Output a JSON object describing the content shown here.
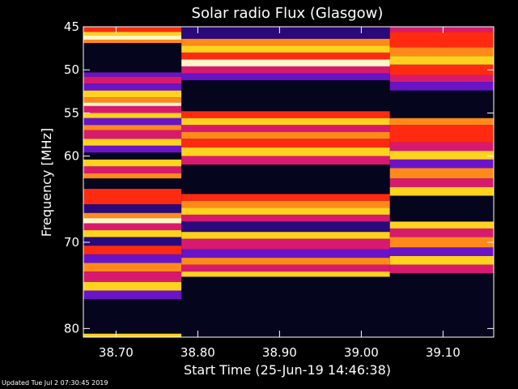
{
  "chart_data": {
    "type": "heatmap",
    "title": "Solar radio Flux (Glasgow)",
    "xlabel": "Start Time (25-Jun-19 14:46:38)",
    "ylabel": "Frequency [MHz]",
    "xlim": [
      38.66,
      39.162
    ],
    "ylim": [
      45,
      81
    ],
    "y_inverted": true,
    "x_ticks": [
      "38.70",
      "38.80",
      "38.90",
      "39.00",
      "39.10"
    ],
    "x_tick_values": [
      38.7,
      38.8,
      38.9,
      39.0,
      39.1
    ],
    "y_ticks": [
      "45",
      "50",
      "55",
      "60",
      "70",
      "80"
    ],
    "y_tick_values": [
      45,
      50,
      55,
      60,
      70,
      80
    ],
    "palette": [
      "#05051e",
      "#2a0a7a",
      "#6a14c8",
      "#d81a6e",
      "#ff2a10",
      "#ff8a1a",
      "#ffd21e",
      "#fff6c8"
    ],
    "segments": [
      {
        "x_start": 38.66,
        "x_end": 38.78,
        "bands": [
          [
            45.0,
            45.6,
            4
          ],
          [
            45.6,
            46.0,
            6
          ],
          [
            46.0,
            46.5,
            7
          ],
          [
            46.5,
            46.9,
            5
          ],
          [
            46.9,
            50.3,
            0
          ],
          [
            50.3,
            50.8,
            2
          ],
          [
            50.8,
            51.6,
            3
          ],
          [
            51.6,
            52.4,
            2
          ],
          [
            52.4,
            53.2,
            6
          ],
          [
            53.2,
            53.8,
            5
          ],
          [
            53.8,
            54.2,
            7
          ],
          [
            54.2,
            55.0,
            3
          ],
          [
            55.0,
            55.6,
            6
          ],
          [
            55.6,
            56.4,
            2
          ],
          [
            56.4,
            57.0,
            5
          ],
          [
            57.0,
            58.0,
            3
          ],
          [
            58.0,
            58.8,
            6
          ],
          [
            58.8,
            59.6,
            2
          ],
          [
            59.6,
            60.4,
            0
          ],
          [
            60.4,
            61.2,
            6
          ],
          [
            61.2,
            62.0,
            3
          ],
          [
            62.0,
            62.6,
            5
          ],
          [
            62.6,
            63.8,
            0
          ],
          [
            63.8,
            65.6,
            4
          ],
          [
            65.6,
            66.6,
            1
          ],
          [
            66.6,
            67.2,
            5
          ],
          [
            67.2,
            67.8,
            7
          ],
          [
            67.8,
            68.6,
            3
          ],
          [
            68.6,
            69.4,
            6
          ],
          [
            69.4,
            70.4,
            1
          ],
          [
            70.4,
            71.4,
            4
          ],
          [
            71.4,
            72.4,
            2
          ],
          [
            72.4,
            73.4,
            5
          ],
          [
            73.4,
            74.6,
            3
          ],
          [
            74.6,
            75.6,
            6
          ],
          [
            75.6,
            76.6,
            2
          ],
          [
            76.6,
            80.6,
            0
          ],
          [
            80.6,
            81.0,
            6
          ]
        ]
      },
      {
        "x_start": 38.78,
        "x_end": 39.035,
        "bands": [
          [
            45.0,
            46.4,
            1
          ],
          [
            46.4,
            47.2,
            5
          ],
          [
            47.2,
            48.0,
            6
          ],
          [
            48.0,
            48.8,
            4
          ],
          [
            48.8,
            49.6,
            7
          ],
          [
            49.6,
            50.4,
            3
          ],
          [
            50.4,
            51.2,
            2
          ],
          [
            51.2,
            54.8,
            0
          ],
          [
            54.8,
            55.6,
            4
          ],
          [
            55.6,
            56.4,
            6
          ],
          [
            56.4,
            57.2,
            3
          ],
          [
            57.2,
            58.0,
            5
          ],
          [
            58.0,
            59.0,
            4
          ],
          [
            59.0,
            60.0,
            6
          ],
          [
            60.0,
            61.0,
            3
          ],
          [
            61.0,
            64.4,
            0
          ],
          [
            64.4,
            65.2,
            4
          ],
          [
            65.2,
            66.0,
            5
          ],
          [
            66.0,
            66.8,
            6
          ],
          [
            66.8,
            67.6,
            3
          ],
          [
            67.6,
            68.8,
            1
          ],
          [
            68.8,
            69.6,
            6
          ],
          [
            69.6,
            70.8,
            3
          ],
          [
            70.8,
            71.8,
            2
          ],
          [
            71.8,
            72.6,
            5
          ],
          [
            72.6,
            73.4,
            3
          ],
          [
            73.4,
            74.0,
            6
          ],
          [
            74.0,
            81.0,
            0
          ]
        ]
      },
      {
        "x_start": 39.035,
        "x_end": 39.162,
        "bands": [
          [
            45.0,
            45.6,
            3
          ],
          [
            45.6,
            47.4,
            4
          ],
          [
            47.4,
            48.4,
            5
          ],
          [
            48.4,
            49.4,
            6
          ],
          [
            49.4,
            50.6,
            4
          ],
          [
            50.6,
            51.4,
            3
          ],
          [
            51.4,
            52.4,
            2
          ],
          [
            52.4,
            55.6,
            0
          ],
          [
            55.6,
            56.4,
            5
          ],
          [
            56.4,
            58.4,
            4
          ],
          [
            58.4,
            59.4,
            3
          ],
          [
            59.4,
            60.4,
            6
          ],
          [
            60.4,
            61.4,
            2
          ],
          [
            61.4,
            62.6,
            5
          ],
          [
            62.6,
            63.6,
            3
          ],
          [
            63.6,
            64.6,
            6
          ],
          [
            64.6,
            67.6,
            0
          ],
          [
            67.6,
            68.4,
            6
          ],
          [
            68.4,
            69.4,
            3
          ],
          [
            69.4,
            70.6,
            5
          ],
          [
            70.6,
            71.6,
            2
          ],
          [
            71.6,
            72.6,
            6
          ],
          [
            72.6,
            73.6,
            3
          ],
          [
            73.6,
            81.0,
            0
          ]
        ]
      }
    ]
  },
  "footer": {
    "updated": "Updated Tue Jul  2 07:30:45 2019"
  }
}
